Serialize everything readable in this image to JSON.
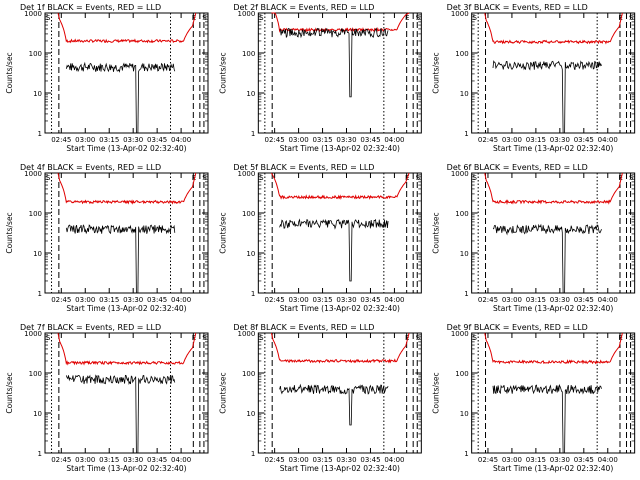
{
  "chart_data": {
    "type": "line",
    "panels": [
      {
        "title": "Det 1f BLACK = Events, RED = LLD",
        "ylabel": "Counts/sec",
        "xlabel": "Start Time (13-Apr-02 02:32:40)",
        "xticks": [
          "02:45",
          "03:00",
          "03:15",
          "03:30",
          "03:45",
          "04:00"
        ],
        "yticks": [
          "1",
          "10",
          "100",
          "1000"
        ],
        "markers": [
          "S",
          "E",
          "S"
        ],
        "red_level": 200,
        "black_level": 45,
        "dip_depth": 1
      },
      {
        "title": "Det 2f BLACK = Events, RED = LLD",
        "ylabel": "Counts/sec",
        "xlabel": "Start Time (13-Apr-02 02:32:40)",
        "xticks": [
          "02:45",
          "03:00",
          "03:15",
          "03:30",
          "03:45",
          "04:00"
        ],
        "yticks": [
          "1",
          "10",
          "100",
          "1000"
        ],
        "markers": [
          "S",
          "E",
          "S"
        ],
        "red_level": 380,
        "black_level": 330,
        "dip_depth": 8
      },
      {
        "title": "Det 3f BLACK = Events, RED = LLD",
        "ylabel": "Counts/sec",
        "xlabel": "Start Time (13-Apr-02 02:32:40)",
        "xticks": [
          "02:45",
          "03:00",
          "03:15",
          "03:30",
          "03:45",
          "04:00"
        ],
        "yticks": [
          "1",
          "10",
          "100",
          "1000"
        ],
        "markers": [
          "S",
          "E",
          "S"
        ],
        "red_level": 190,
        "black_level": 50,
        "dip_depth": 1
      },
      {
        "title": "Det 4f BLACK = Events, RED = LLD",
        "ylabel": "Counts/sec",
        "xlabel": "Start Time (13-Apr-02 02:32:40)",
        "xticks": [
          "02:45",
          "03:00",
          "03:15",
          "03:30",
          "03:45",
          "04:00"
        ],
        "yticks": [
          "1",
          "10",
          "100",
          "1000"
        ],
        "markers": [
          "S",
          "E",
          "S"
        ],
        "red_level": 190,
        "black_level": 40,
        "dip_depth": 1
      },
      {
        "title": "Det 5f BLACK = Events, RED = LLD",
        "ylabel": "Counts/sec",
        "xlabel": "Start Time (13-Apr-02 02:32:40)",
        "xticks": [
          "02:45",
          "03:00",
          "03:15",
          "03:30",
          "03:45",
          "04:00"
        ],
        "yticks": [
          "1",
          "10",
          "100",
          "1000"
        ],
        "markers": [
          "S",
          "E",
          "S"
        ],
        "red_level": 250,
        "black_level": 55,
        "dip_depth": 2
      },
      {
        "title": "Det 6f BLACK = Events, RED = LLD",
        "ylabel": "Counts/sec",
        "xlabel": "Start Time (13-Apr-02 02:32:40)",
        "xticks": [
          "02:45",
          "03:00",
          "03:15",
          "03:30",
          "03:45",
          "04:00"
        ],
        "yticks": [
          "1",
          "10",
          "100",
          "1000"
        ],
        "markers": [
          "S",
          "E",
          "S"
        ],
        "red_level": 190,
        "black_level": 40,
        "dip_depth": 1
      },
      {
        "title": "Det 7f BLACK = Events, RED = LLD",
        "ylabel": "Counts/sec",
        "xlabel": "Start Time (13-Apr-02 02:32:40)",
        "xticks": [
          "02:45",
          "03:00",
          "03:15",
          "03:30",
          "03:45",
          "04:00"
        ],
        "yticks": [
          "1",
          "10",
          "100",
          "1000"
        ],
        "markers": [
          "S",
          "E",
          "S"
        ],
        "red_level": 180,
        "black_level": 70,
        "dip_depth": 1
      },
      {
        "title": "Det 8f BLACK = Events, RED = LLD",
        "ylabel": "Counts/sec",
        "xlabel": "Start Time (13-Apr-02 02:32:40)",
        "xticks": [
          "02:45",
          "03:00",
          "03:15",
          "03:30",
          "03:45",
          "04:00"
        ],
        "yticks": [
          "1",
          "10",
          "100",
          "1000"
        ],
        "markers": [
          "S",
          "E",
          "S"
        ],
        "red_level": 200,
        "black_level": 40,
        "dip_depth": 5
      },
      {
        "title": "Det 9f BLACK = Events, RED = LLD",
        "ylabel": "Counts/sec",
        "xlabel": "Start Time (13-Apr-02 02:32:40)",
        "xticks": [
          "02:45",
          "03:00",
          "03:15",
          "03:30",
          "03:45",
          "04:00"
        ],
        "yticks": [
          "1",
          "10",
          "100",
          "1000"
        ],
        "markers": [
          "S",
          "E",
          "S"
        ],
        "red_level": 190,
        "black_level": 40,
        "dip_depth": 1
      }
    ],
    "series_colors": {
      "events": "#000000",
      "lld": "#e00000"
    },
    "yscale": "log",
    "ylim": [
      1,
      1000
    ]
  }
}
